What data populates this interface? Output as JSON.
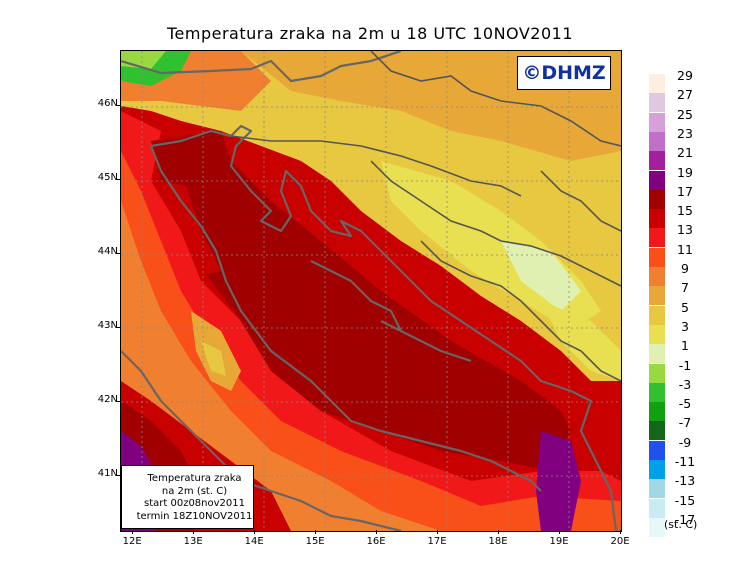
{
  "title": "Temperatura zraka na 2m u 18 UTC 10NOV2011",
  "watermark": "©DHMZ",
  "info_box": {
    "line1": "Temperatura zraka",
    "line2": "na 2m (st. C)",
    "line3": "start 00z08nov2011",
    "line4": "termin 18Z10NOV2011"
  },
  "legend": {
    "unit": "(st. C)",
    "levels": [
      {
        "label": "29",
        "color": "#fdeee0"
      },
      {
        "label": "27",
        "color": "#e0c8e0"
      },
      {
        "label": "25",
        "color": "#d8a0d8"
      },
      {
        "label": "23",
        "color": "#c070c8"
      },
      {
        "label": "21",
        "color": "#a020a0"
      },
      {
        "label": "19",
        "color": "#800080"
      },
      {
        "label": "17",
        "color": "#a00000"
      },
      {
        "label": "15",
        "color": "#c80000"
      },
      {
        "label": "13",
        "color": "#f01818"
      },
      {
        "label": "11",
        "color": "#f85018"
      },
      {
        "label": "9",
        "color": "#f08030"
      },
      {
        "label": "7",
        "color": "#e8a838"
      },
      {
        "label": "5",
        "color": "#e8c840"
      },
      {
        "label": "3",
        "color": "#e8e050"
      },
      {
        "label": "1",
        "color": "#e0f0b0"
      },
      {
        "label": "-1",
        "color": "#98d840"
      },
      {
        "label": "-3",
        "color": "#30c030"
      },
      {
        "label": "-5",
        "color": "#10a010"
      },
      {
        "label": "-7",
        "color": "#106818"
      },
      {
        "label": "-9",
        "color": "#2050f0"
      },
      {
        "label": "-11",
        "color": "#00a0e8"
      },
      {
        "label": "-13",
        "color": "#a0d8e8"
      },
      {
        "label": "-15",
        "color": "#c8ecf0"
      },
      {
        "label": "-17",
        "color": "#e8f8f8"
      }
    ]
  },
  "axes": {
    "lon_ticks": [
      "12E",
      "13E",
      "14E",
      "15E",
      "16E",
      "17E",
      "18E",
      "19E",
      "20E"
    ],
    "lat_ticks": [
      "41N",
      "42N",
      "43N",
      "44N",
      "45N",
      "46N"
    ],
    "lon_range": [
      11.8,
      20.0
    ],
    "lat_range": [
      40.25,
      46.75
    ]
  }
}
